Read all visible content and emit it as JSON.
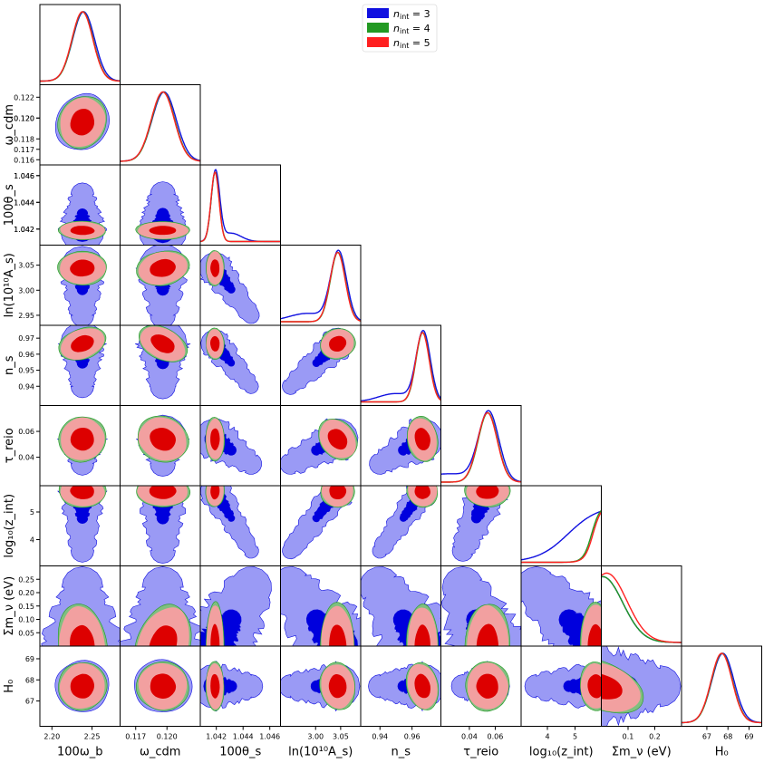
{
  "chart_data": {
    "type": "triangle-corner-plot",
    "description_units": "parameters plotted in data units",
    "parameters": [
      {
        "key": "omega_b",
        "label": "100ω_b",
        "range": [
          2.185,
          2.285
        ],
        "ticks": [
          2.2,
          2.25
        ],
        "tick_labels": [
          "2.20",
          "2.25"
        ],
        "mean": 2.238,
        "sigma": 0.013
      },
      {
        "key": "omega_cdm",
        "label": "ω_cdm",
        "range": [
          0.1155,
          0.1232
        ],
        "ticks": [
          0.117,
          0.12
        ],
        "tick_labels": [
          "0.117",
          "0.120"
        ],
        "mean": 0.1196,
        "sigma": 0.0011
      },
      {
        "key": "theta_s",
        "label": "100θ_s",
        "range": [
          1.0408,
          1.0468
        ],
        "ticks": [
          1.042,
          1.044,
          1.046
        ],
        "tick_labels": [
          "1.042",
          "1.044",
          "1.046"
        ],
        "mean": 1.0419,
        "sigma": 0.0003
      },
      {
        "key": "ln10As",
        "label": "ln(10¹⁰A_s)",
        "range": [
          2.93,
          3.09
        ],
        "ticks": [
          3.0,
          3.05
        ],
        "tick_labels": [
          "3.00",
          "3.05"
        ],
        "y_ticks": [
          2.95,
          3.0,
          3.05
        ],
        "y_tick_labels": [
          "2.95",
          "3.00",
          "3.05"
        ],
        "mean": 3.044,
        "sigma": 0.015
      },
      {
        "key": "n_s",
        "label": "n_s",
        "range": [
          0.928,
          0.978
        ],
        "ticks": [
          0.94,
          0.96
        ],
        "tick_labels": [
          "0.94",
          "0.96"
        ],
        "y_ticks": [
          0.94,
          0.95,
          0.96,
          0.97
        ],
        "y_tick_labels": [
          "0.94",
          "0.95",
          "0.96",
          "0.97"
        ],
        "mean": 0.9665,
        "sigma": 0.0042
      },
      {
        "key": "tau_reio",
        "label": "τ_reio",
        "range": [
          0.018,
          0.08
        ],
        "ticks": [
          0.04,
          0.06
        ],
        "tick_labels": [
          "0.04",
          "0.06"
        ],
        "y_ticks": [
          0.04,
          0.06
        ],
        "y_tick_labels": [
          "0.04",
          "0.06"
        ],
        "mean": 0.054,
        "sigma": 0.0075
      },
      {
        "key": "log10_zint",
        "label": "log₁₀(z_int)",
        "range": [
          3.05,
          5.95
        ],
        "ticks": [
          4,
          5
        ],
        "tick_labels": [
          "4",
          "5"
        ],
        "y_ticks": [
          4,
          5
        ],
        "y_tick_labels": [
          "4",
          "5"
        ],
        "mean": 5.75,
        "sigma": 0.25
      },
      {
        "key": "sum_mnu",
        "label": "Σm_ν (eV)",
        "range": [
          0.0,
          0.3
        ],
        "ticks": [
          0.1,
          0.2
        ],
        "tick_labels": [
          "0.1",
          "0.2"
        ],
        "y_ticks": [
          0.05,
          0.1,
          0.15,
          0.2,
          0.25
        ],
        "y_tick_labels": [
          "0.05",
          "0.10",
          "0.15",
          "0.20",
          "0.25"
        ],
        "mean": 0.0,
        "sigma": 0.07
      },
      {
        "key": "H0",
        "label": "H₀",
        "range": [
          65.8,
          69.6
        ],
        "ticks": [
          67,
          68,
          69
        ],
        "tick_labels": [
          "67",
          "68",
          "69"
        ],
        "y_ticks": [
          67,
          68,
          69
        ],
        "y_tick_labels": [
          "67",
          "68",
          "69"
        ],
        "mean": 67.7,
        "sigma": 0.5
      }
    ],
    "series": [
      {
        "name": "n_int = 3",
        "legend": "n",
        "legend_sub": "int",
        "legend_val": " = 3",
        "color": "#1010e0",
        "fill_dark": "#0000dd",
        "fill_light": "#9a9af5"
      },
      {
        "name": "n_int = 4",
        "legend": "n",
        "legend_sub": "int",
        "legend_val": " = 4",
        "color": "#229922",
        "fill_dark": "#2a8a2a",
        "fill_light": "#7fbf7f"
      },
      {
        "name": "n_int = 5",
        "legend": "n",
        "legend_sub": "int",
        "legend_val": " = 5",
        "color": "#ff2020",
        "fill_dark": "#dd0000",
        "fill_light": "#f2a0a0"
      }
    ],
    "legend_position": "top-center",
    "n_int3_tail": {
      "theta_s": 1.0446,
      "ln10As": 2.95,
      "n_s": 0.94,
      "tau_reio": 0.035,
      "log10_zint": 3.6,
      "sum_mnu": 0.22
    }
  }
}
